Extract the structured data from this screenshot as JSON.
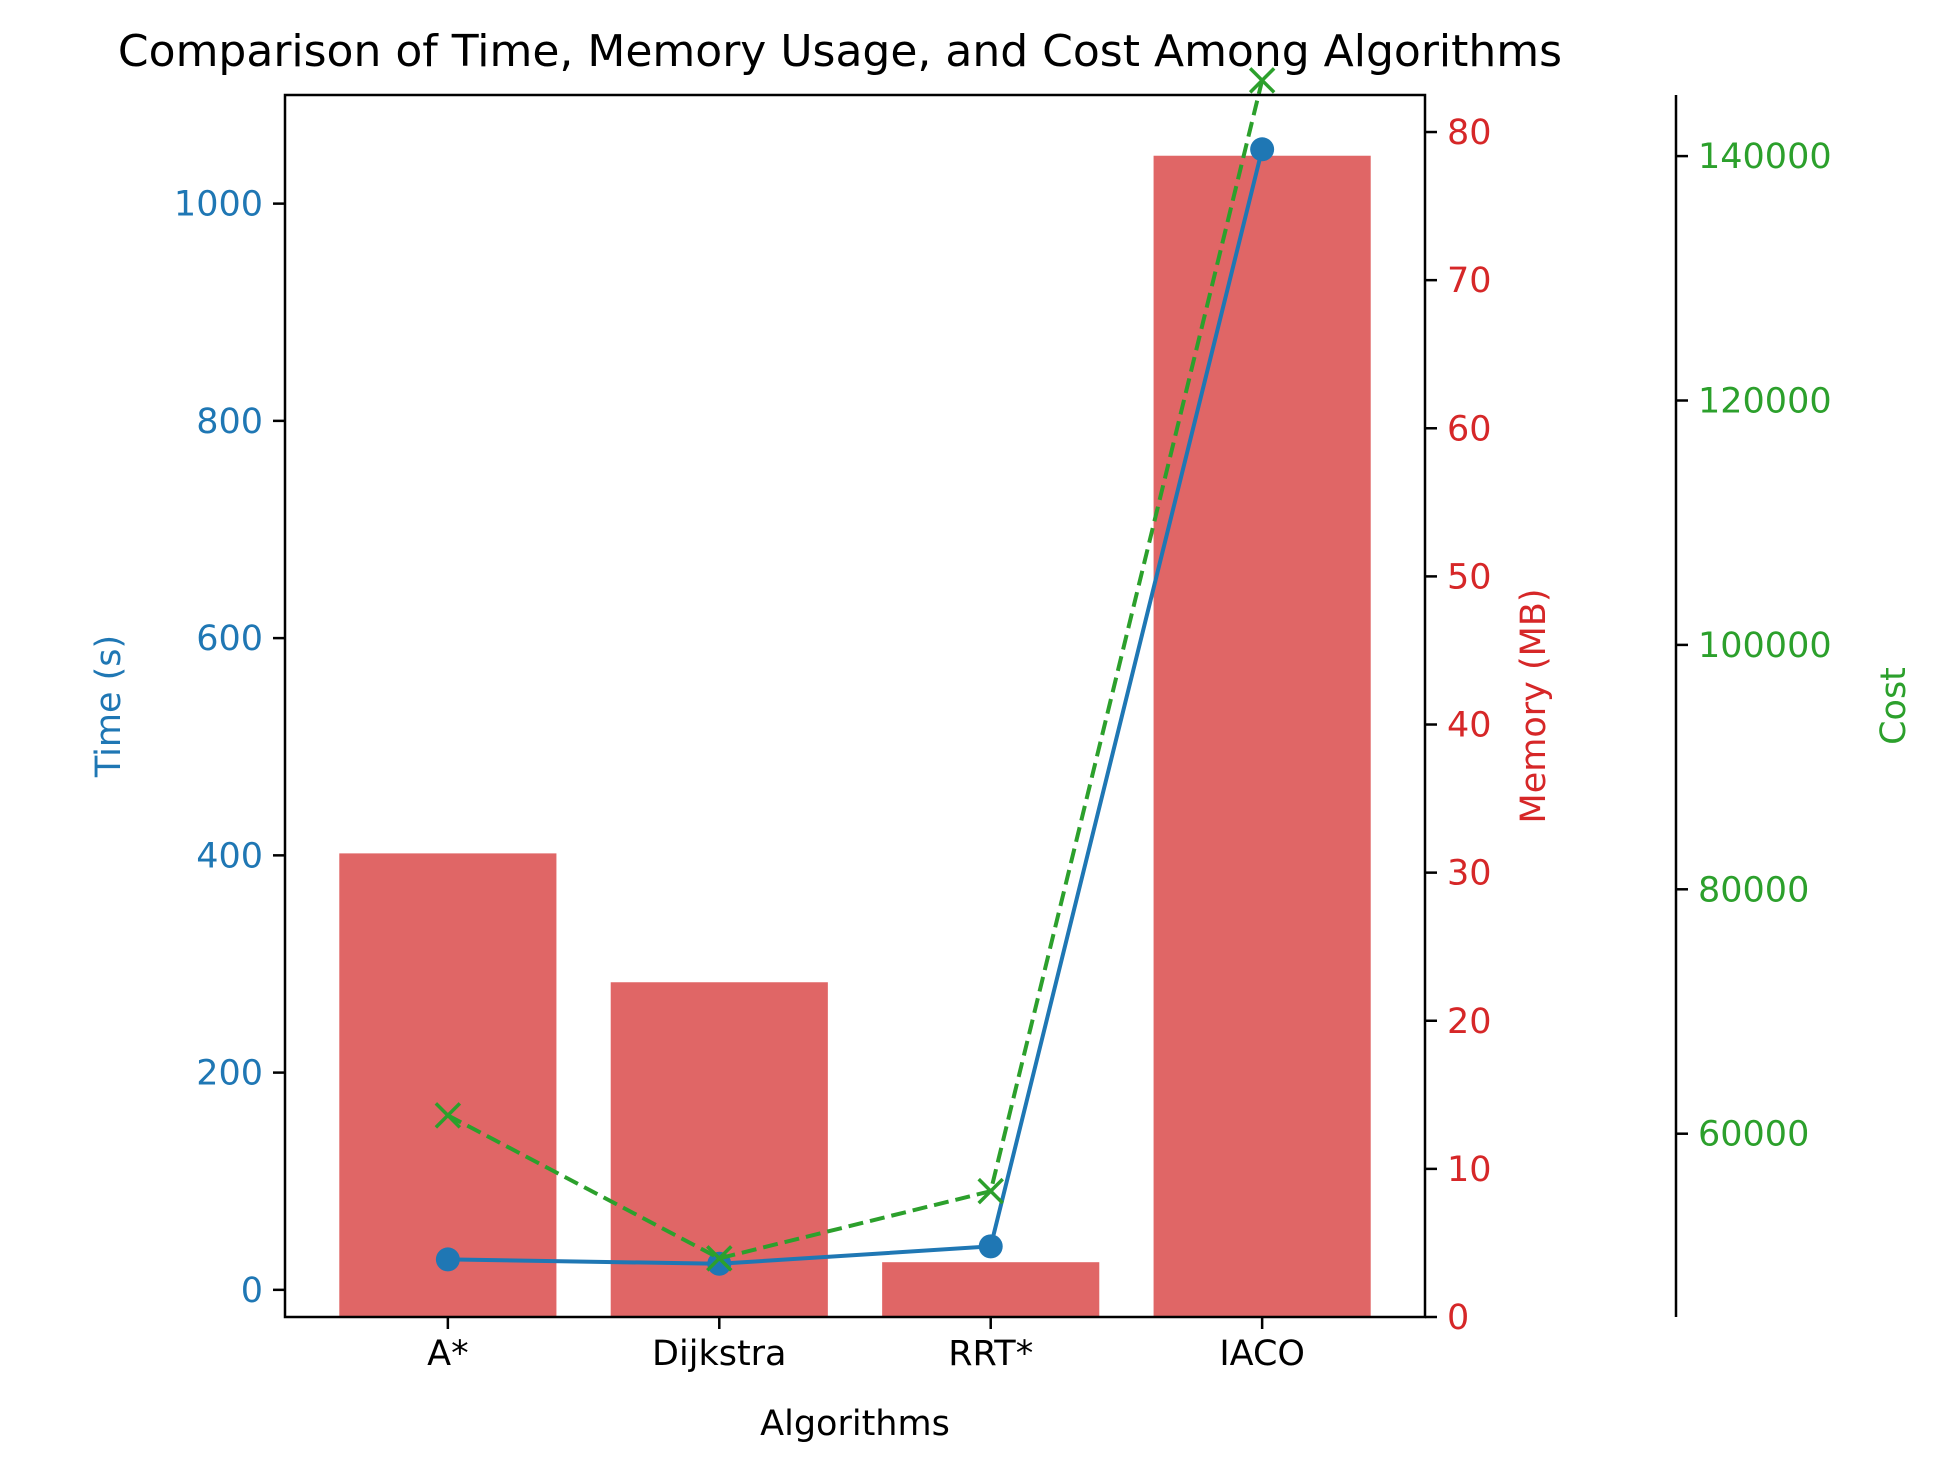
{
  "chart_data": {
    "type": "bar+line",
    "title": "Comparison of Time, Memory Usage, and Cost Among Algorithms",
    "xlabel": "Algorithms",
    "categories": [
      "A*",
      "Dijkstra",
      "RRT*",
      "IACO"
    ],
    "axes": {
      "time": {
        "label": "Time (s)",
        "color": "#1f77b4",
        "ylim": [
          -25,
          1100
        ],
        "ticks": [
          0,
          200,
          400,
          600,
          800,
          1000
        ],
        "tick_labels": [
          "0",
          "200",
          "400",
          "600",
          "800",
          "1000"
        ]
      },
      "memory": {
        "label": "Memory (MB)",
        "color": "#d62728",
        "ylim": [
          0,
          82.5
        ],
        "ticks": [
          0,
          10,
          20,
          30,
          40,
          50,
          60,
          70,
          80
        ],
        "tick_labels": [
          "0",
          "10",
          "20",
          "30",
          "40",
          "50",
          "60",
          "70",
          "80"
        ]
      },
      "cost": {
        "label": "Cost",
        "color": "#2ca02c",
        "ylim": [
          45000,
          145000
        ],
        "ticks": [
          60000,
          80000,
          100000,
          120000,
          140000
        ],
        "tick_labels": [
          "60000",
          "80000",
          "100000",
          "120000",
          "140000"
        ]
      }
    },
    "series": [
      {
        "name": "Memory",
        "kind": "bar",
        "axis": "memory",
        "color": "#e06666",
        "values": [
          31.3,
          22.6,
          3.7,
          78.4
        ]
      },
      {
        "name": "Time",
        "kind": "line",
        "marker": "circle",
        "axis": "time",
        "color": "#1f77b4",
        "values": [
          28,
          24,
          40,
          1050
        ]
      },
      {
        "name": "Cost",
        "kind": "line",
        "marker": "x",
        "linestyle": "dashed",
        "axis": "cost",
        "color": "#2ca02c",
        "values": [
          61500,
          49800,
          55300,
          146200
        ]
      }
    ]
  }
}
